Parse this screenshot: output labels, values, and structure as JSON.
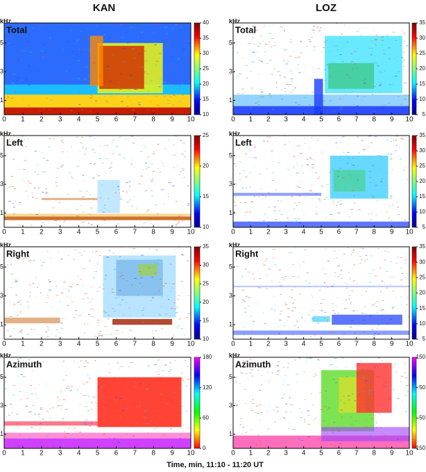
{
  "headers": [
    "KAN",
    "LOZ"
  ],
  "x_label": "Time, min, 11:10 - 11:20 UT",
  "chart_data": [
    {
      "type": "spectrogram",
      "label": "Total",
      "y_label": "kHz",
      "colormap": "jet",
      "xlim": [
        0,
        10
      ],
      "xticks": [
        0,
        1,
        2,
        3,
        4,
        5,
        6,
        7,
        8,
        9,
        10
      ],
      "ylim": [
        0,
        6.4
      ],
      "yticks": [
        1,
        3,
        5
      ],
      "clim": [
        10,
        40
      ],
      "cticks": [
        10,
        15,
        20,
        25,
        30,
        35,
        40
      ]
    },
    {
      "type": "spectrogram",
      "label": "Total",
      "y_label": "kHz",
      "colormap": "jet",
      "xlim": [
        0,
        10
      ],
      "xticks": [
        0,
        1,
        2,
        3,
        4,
        5,
        6,
        7,
        8,
        9,
        10
      ],
      "ylim": [
        0,
        6.4
      ],
      "yticks": [
        1,
        3,
        5
      ],
      "clim": [
        5,
        35
      ],
      "cticks": [
        5,
        10,
        15,
        20,
        25,
        30,
        35
      ]
    },
    {
      "type": "spectrogram",
      "label": "Left",
      "y_label": "kHz",
      "colormap": "jet",
      "xlim": [
        0,
        10
      ],
      "xticks": [
        0,
        1,
        2,
        3,
        4,
        5,
        6,
        7,
        8,
        9,
        10
      ],
      "ylim": [
        0,
        6.4
      ],
      "yticks": [
        1,
        3,
        5
      ],
      "clim": [
        10,
        25
      ],
      "cticks": [
        10,
        15,
        20,
        25
      ]
    },
    {
      "type": "spectrogram",
      "label": "Left",
      "y_label": "kHz",
      "colormap": "jet",
      "xlim": [
        0,
        10
      ],
      "xticks": [
        0,
        1,
        2,
        3,
        4,
        5,
        6,
        7,
        8,
        9,
        10
      ],
      "ylim": [
        0,
        6.4
      ],
      "yticks": [
        1,
        3,
        5
      ],
      "clim": [
        5,
        35
      ],
      "cticks": [
        5,
        10,
        15,
        20,
        25,
        30,
        35
      ]
    },
    {
      "type": "spectrogram",
      "label": "Right",
      "y_label": "kHz",
      "colormap": "jet",
      "xlim": [
        0,
        10
      ],
      "xticks": [
        0,
        1,
        2,
        3,
        4,
        5,
        6,
        7,
        8,
        9,
        10
      ],
      "ylim": [
        0,
        6.4
      ],
      "yticks": [
        1,
        3,
        5
      ],
      "clim": [
        10,
        35
      ],
      "cticks": [
        10,
        15,
        20,
        25,
        30,
        35
      ]
    },
    {
      "type": "spectrogram",
      "label": "Right",
      "y_label": "kHz",
      "colormap": "jet",
      "xlim": [
        0,
        10
      ],
      "xticks": [
        0,
        1,
        2,
        3,
        4,
        5,
        6,
        7,
        8,
        9,
        10
      ],
      "ylim": [
        0,
        6.4
      ],
      "yticks": [
        1,
        3,
        5
      ],
      "clim": [
        5,
        35
      ],
      "cticks": [
        5,
        10,
        15,
        20,
        25,
        30,
        35
      ]
    },
    {
      "type": "spectrogram",
      "label": "Azimuth",
      "y_label": "kHz",
      "colormap": "hsv",
      "xlim": [
        0,
        10
      ],
      "xticks": [
        0,
        1,
        2,
        3,
        4,
        5,
        6,
        7,
        8,
        9,
        10
      ],
      "ylim": [
        0,
        6.4
      ],
      "yticks": [
        1,
        3,
        5
      ],
      "clim": [
        0,
        180
      ],
      "cticks": [
        0,
        60,
        120,
        180
      ]
    },
    {
      "type": "spectrogram",
      "label": "Azimuth",
      "y_label": "kHz",
      "colormap": "hsv",
      "xlim": [
        0,
        10
      ],
      "xticks": [
        0,
        1,
        2,
        3,
        4,
        5,
        6,
        7,
        8,
        9,
        10
      ],
      "ylim": [
        0,
        6.4
      ],
      "yticks": [
        1,
        3,
        5
      ],
      "clim": [
        -150,
        150
      ],
      "cticks": [
        -150,
        -50,
        50,
        150
      ]
    }
  ]
}
